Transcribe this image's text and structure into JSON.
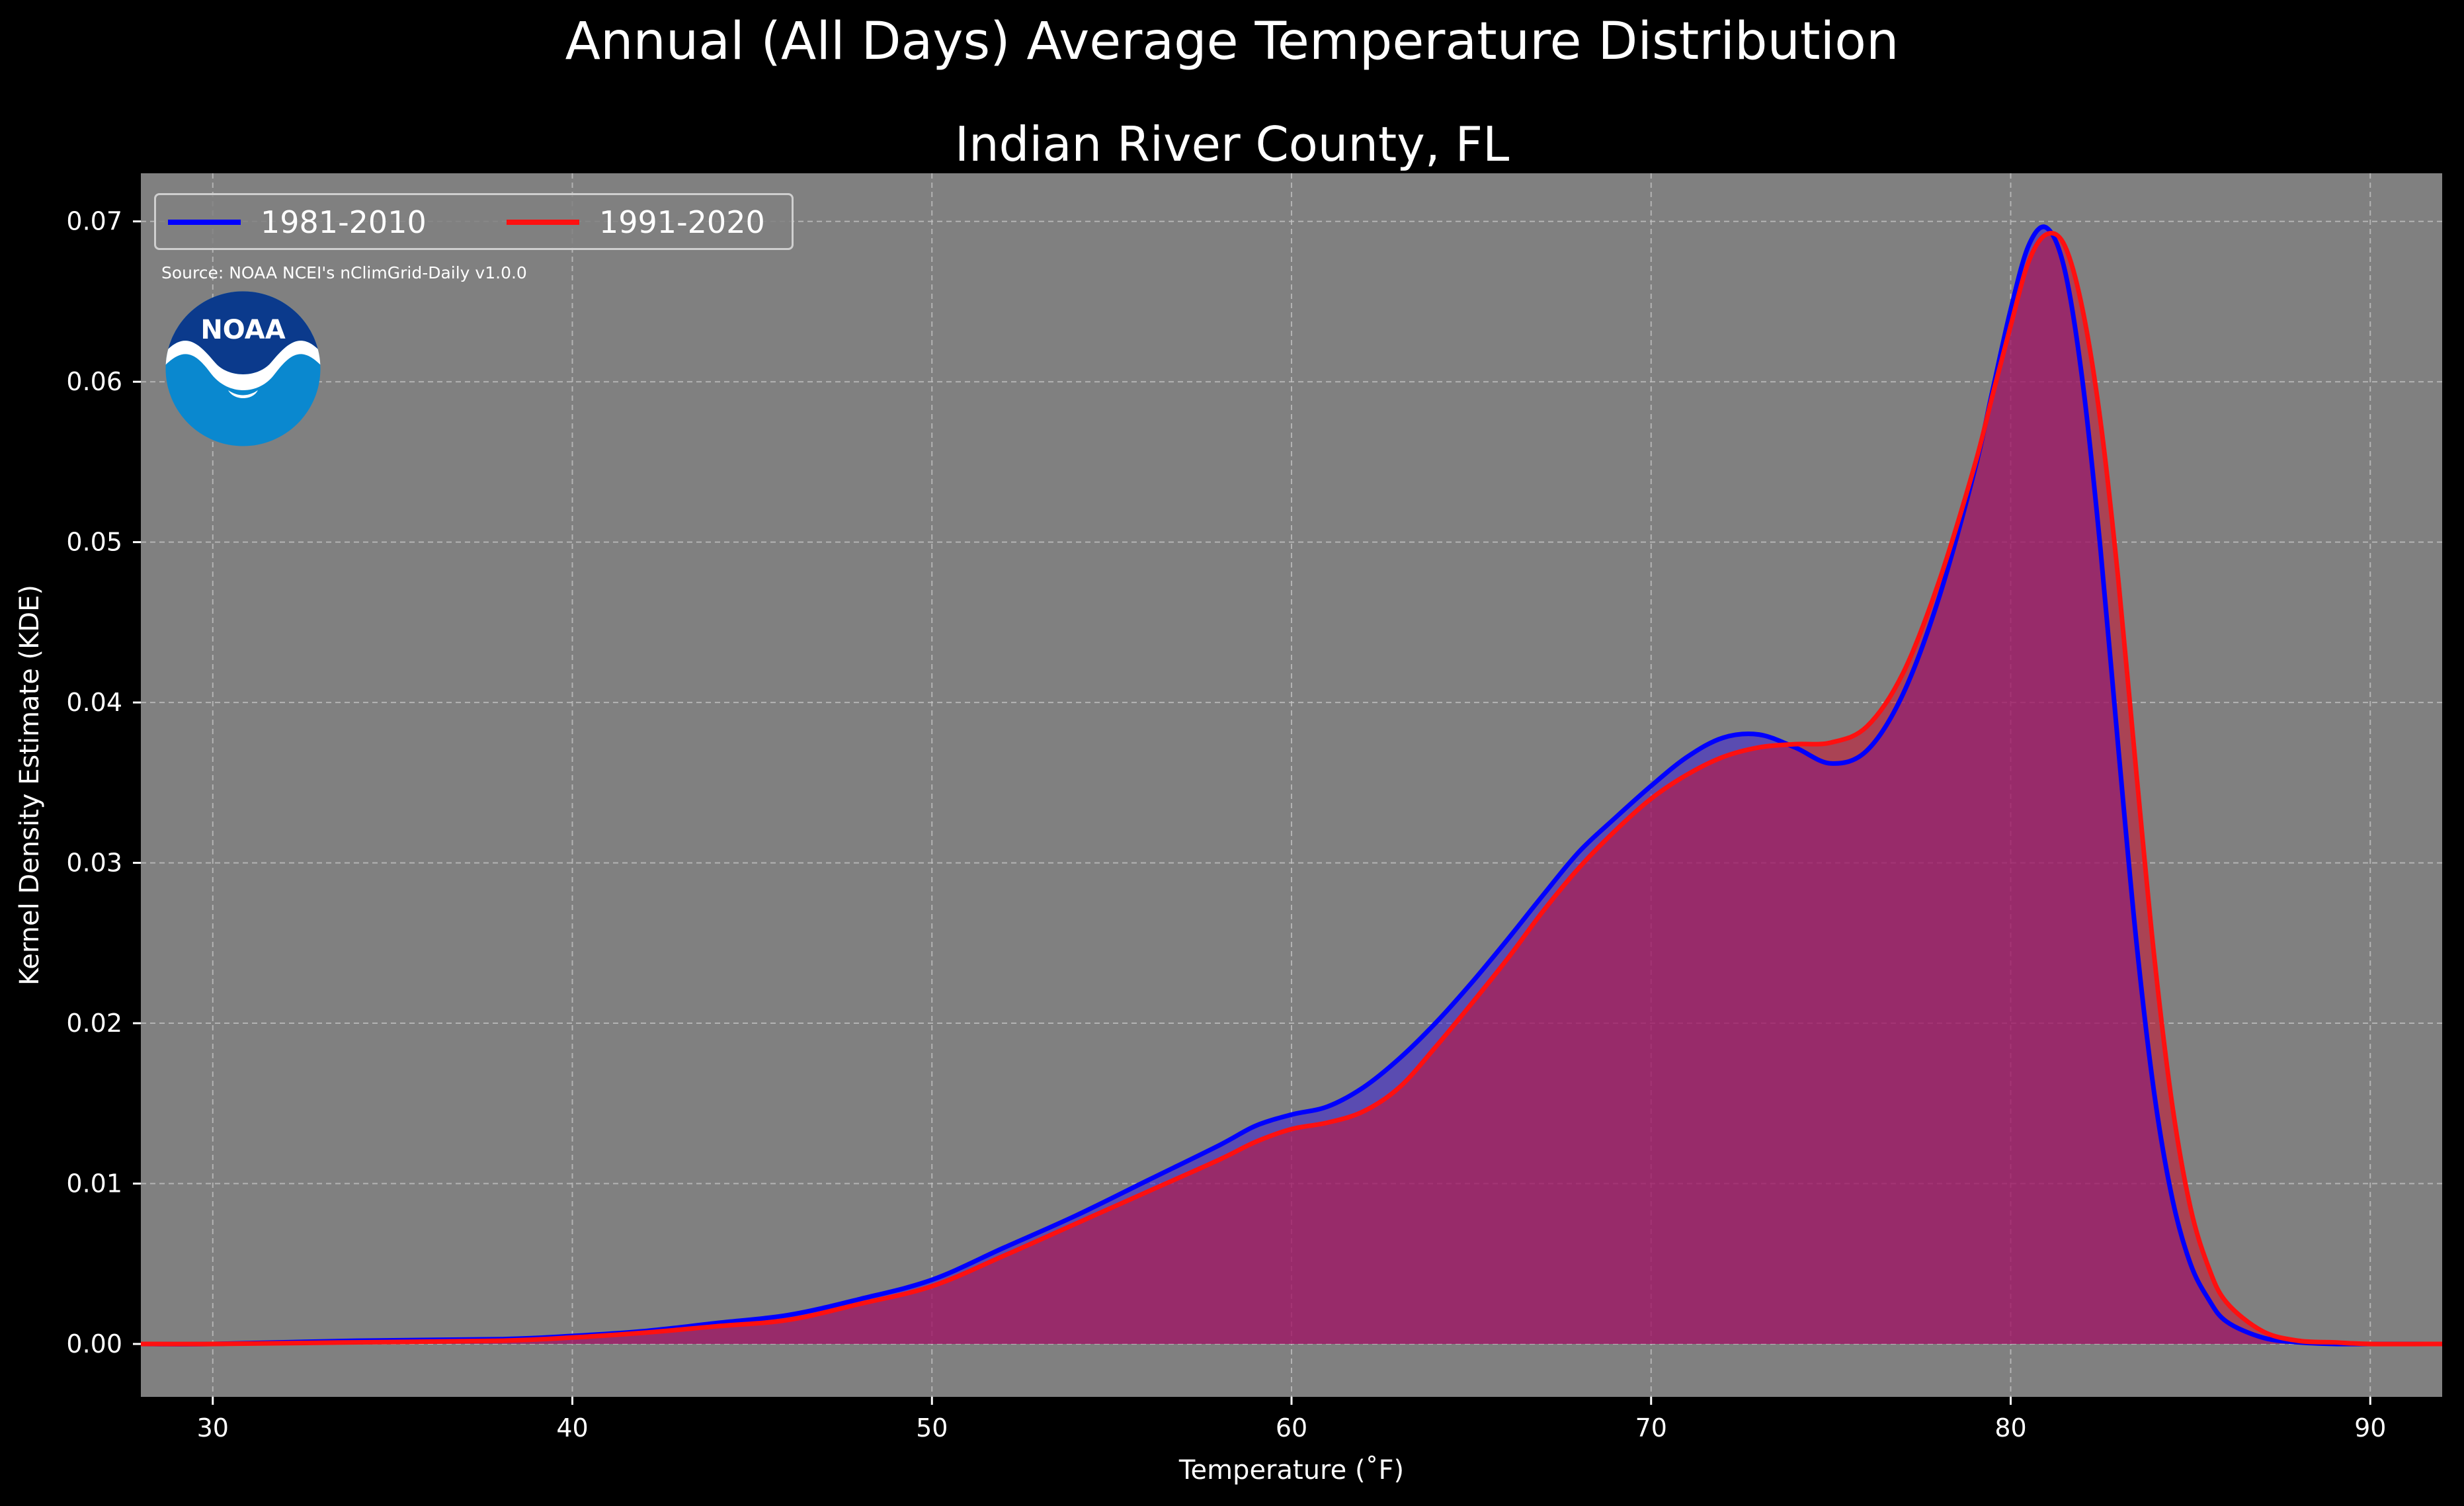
{
  "suptitle": "Annual (All Days) Average Temperature Distribution",
  "subtitle": "Indian River County, FL",
  "source_note": "Source: NOAA NCEI's nClimGrid-Daily v1.0.0",
  "logo_text": "NOAA",
  "colors": {
    "background": "#000000",
    "plot_bg": "#808080",
    "series_1981": "#0000ff",
    "series_1991": "#ff1010",
    "fill_overlap": "#9c1f5e"
  },
  "chart_data": {
    "type": "area",
    "title": "Indian River County, FL",
    "xlabel": "Temperature (˚F)",
    "ylabel": "Kernel Density Estimate (KDE)",
    "xlim": [
      28,
      92
    ],
    "ylim": [
      -0.0033,
      0.073
    ],
    "xticks": [
      30,
      40,
      50,
      60,
      70,
      80,
      90
    ],
    "xtick_labels": [
      "30",
      "40",
      "50",
      "60",
      "70",
      "80",
      "90"
    ],
    "yticks": [
      0,
      0.01,
      0.02,
      0.03,
      0.04,
      0.05,
      0.06,
      0.07
    ],
    "ytick_labels": [
      "0.00",
      "0.01",
      "0.02",
      "0.03",
      "0.04",
      "0.05",
      "0.06",
      "0.07"
    ],
    "grid": true,
    "legend_position": "top-left",
    "series": [
      {
        "name": "1981-2010",
        "color": "#0000ff",
        "x": [
          28,
          30,
          34,
          38,
          40,
          42,
          44,
          46,
          48,
          50,
          52,
          54,
          56,
          58,
          59,
          60,
          61,
          62,
          63,
          64,
          65,
          66,
          67,
          68,
          69,
          70,
          71,
          72,
          73,
          74,
          75,
          76,
          77,
          78,
          79,
          79.5,
          80,
          80.5,
          81,
          81.5,
          82,
          82.5,
          83,
          83.5,
          84,
          84.5,
          85,
          85.5,
          86,
          87,
          88,
          89,
          90,
          92
        ],
        "y": [
          0,
          0,
          0.0002,
          0.0003,
          0.0005,
          0.0008,
          0.0013,
          0.0018,
          0.0028,
          0.004,
          0.006,
          0.008,
          0.0102,
          0.0124,
          0.0136,
          0.0143,
          0.0148,
          0.016,
          0.0178,
          0.02,
          0.0225,
          0.0252,
          0.028,
          0.0307,
          0.0328,
          0.0348,
          0.0366,
          0.0378,
          0.038,
          0.0372,
          0.0362,
          0.037,
          0.0405,
          0.0465,
          0.0545,
          0.0595,
          0.0645,
          0.0685,
          0.0696,
          0.067,
          0.06,
          0.0495,
          0.037,
          0.025,
          0.0155,
          0.009,
          0.005,
          0.0028,
          0.0014,
          0.0004,
          0.0001,
          0,
          0,
          0
        ]
      },
      {
        "name": "1991-2020",
        "color": "#ff1010",
        "x": [
          28,
          30,
          34,
          38,
          40,
          42,
          44,
          46,
          48,
          50,
          52,
          54,
          56,
          58,
          59,
          60,
          61,
          62,
          63,
          64,
          65,
          66,
          67,
          68,
          69,
          70,
          71,
          72,
          73,
          74,
          75,
          76,
          77,
          78,
          79,
          79.5,
          80,
          80.5,
          81,
          81.5,
          82,
          82.5,
          83,
          83.5,
          84,
          84.5,
          85,
          85.5,
          86,
          87,
          88,
          89,
          90,
          92
        ],
        "y": [
          0,
          0,
          0.0001,
          0.0002,
          0.0004,
          0.0007,
          0.0011,
          0.0015,
          0.0025,
          0.0036,
          0.0055,
          0.0075,
          0.0095,
          0.0115,
          0.0126,
          0.0134,
          0.0138,
          0.0145,
          0.016,
          0.0185,
          0.0212,
          0.024,
          0.027,
          0.0297,
          0.032,
          0.034,
          0.0355,
          0.0366,
          0.0372,
          0.0374,
          0.0375,
          0.0385,
          0.0418,
          0.0475,
          0.0548,
          0.0592,
          0.0635,
          0.0675,
          0.0692,
          0.0685,
          0.0645,
          0.0575,
          0.0475,
          0.0355,
          0.024,
          0.0148,
          0.0085,
          0.0048,
          0.0026,
          0.0008,
          0.0002,
          0.0001,
          0,
          0
        ]
      }
    ]
  }
}
